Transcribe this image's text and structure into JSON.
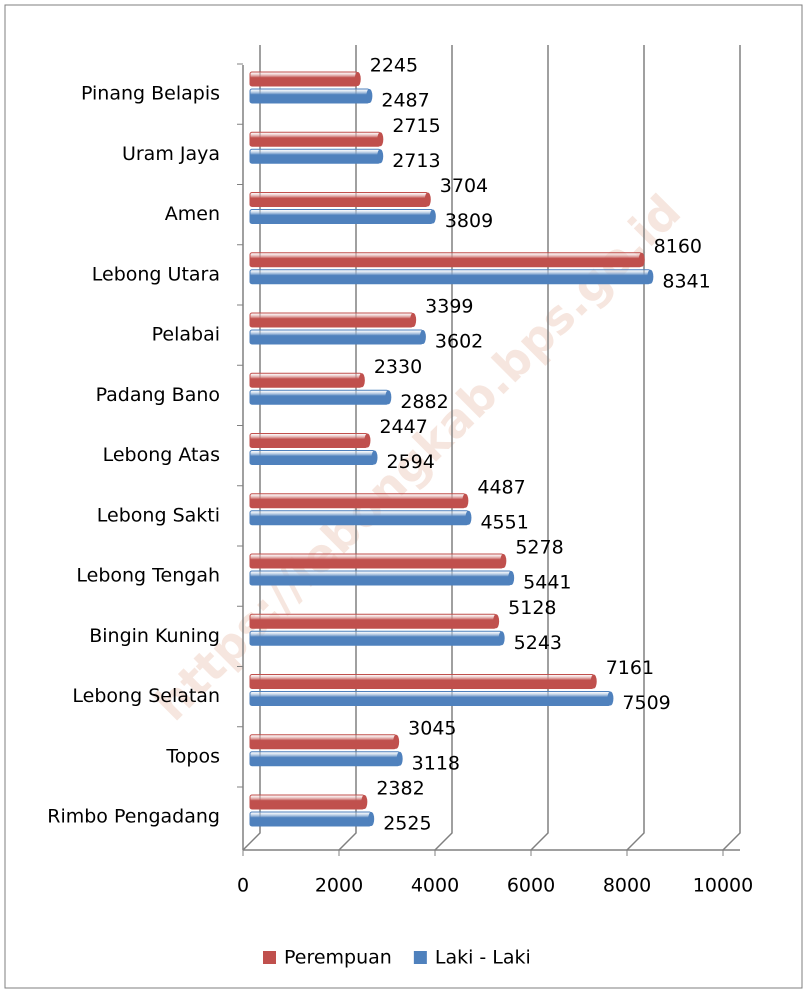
{
  "chart_data": {
    "type": "bar",
    "orientation": "horizontal",
    "categories": [
      "Pinang Belapis",
      "Uram Jaya",
      "Amen",
      "Lebong Utara",
      "Pelabai",
      "Padang Bano",
      "Lebong Atas",
      "Lebong Sakti",
      "Lebong Tengah",
      "Bingin Kuning",
      "Lebong Selatan",
      "Topos",
      "Rimbo Pengadang"
    ],
    "series": [
      {
        "name": "Perempuan",
        "color": "#c0504d",
        "values": [
          2245,
          2715,
          3704,
          8160,
          3399,
          2330,
          2447,
          4487,
          5278,
          5128,
          7161,
          3045,
          2382
        ]
      },
      {
        "name": "Laki - Laki",
        "color": "#4f81bd",
        "values": [
          2487,
          2713,
          3809,
          8341,
          3602,
          2882,
          2594,
          4551,
          5441,
          5243,
          7509,
          3118,
          2525
        ]
      }
    ],
    "xlim": [
      0,
      10000
    ],
    "xticks": [
      0,
      2000,
      4000,
      6000,
      8000,
      10000
    ],
    "grid": true,
    "legend": "bottom",
    "watermark": "https://lebongkab.bps.go.id"
  }
}
